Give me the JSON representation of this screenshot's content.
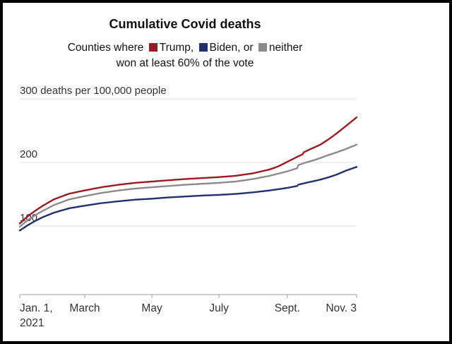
{
  "header": {
    "title": "Cumulative Covid deaths",
    "legend": {
      "prefix": "Counties where",
      "items": [
        {
          "name": "Trump",
          "label": "Trump,",
          "color": "#9e1a22"
        },
        {
          "name": "Biden",
          "label": "Biden,",
          "color": "#20306e"
        },
        {
          "name": "neither",
          "label": "neither",
          "color": "#8b8b8b"
        }
      ],
      "conjunction": "or",
      "line2": "won at least 60% of the vote"
    }
  },
  "chart_data": {
    "type": "line",
    "title": "Cumulative Covid deaths",
    "ylabel": "deaths per 100,000 people",
    "ylim": [
      85,
      310
    ],
    "x_range_days": [
      0,
      306
    ],
    "grid": true,
    "y_gridlines": [
      {
        "value": 300,
        "label": "300 deaths per 100,000 people"
      },
      {
        "value": 200,
        "label": "200"
      },
      {
        "value": 100,
        "label": "100"
      }
    ],
    "x_ticks": [
      {
        "day": 0,
        "label": "Jan. 1,",
        "label2": "2021",
        "align": "start"
      },
      {
        "day": 59,
        "label": "March",
        "align": "middle"
      },
      {
        "day": 120,
        "label": "May",
        "align": "middle"
      },
      {
        "day": 181,
        "label": "July",
        "align": "middle"
      },
      {
        "day": 243,
        "label": "Sept.",
        "align": "middle"
      },
      {
        "day": 306,
        "label": "Nov. 3",
        "align": "end"
      }
    ],
    "draw_order": [
      "Biden",
      "neither",
      "Trump"
    ],
    "series": [
      {
        "name": "Trump",
        "color": "#9e1a22",
        "days": [
          0,
          7,
          14,
          21,
          31,
          45,
          59,
          74,
          90,
          105,
          120,
          135,
          151,
          166,
          181,
          196,
          212,
          227,
          235,
          243,
          251,
          257,
          258,
          264,
          273,
          281,
          288,
          296,
          306
        ],
        "values": [
          104,
          115,
          124,
          132,
          142,
          151,
          156,
          161,
          165,
          168,
          170,
          172,
          174,
          175.5,
          177,
          179,
          183,
          189,
          194,
          201,
          208,
          213,
          216,
          221,
          228,
          237,
          246,
          257,
          271
        ]
      },
      {
        "name": "Biden",
        "color": "#20306e",
        "days": [
          0,
          7,
          14,
          21,
          31,
          45,
          59,
          74,
          90,
          105,
          120,
          135,
          151,
          166,
          181,
          196,
          212,
          227,
          243,
          252,
          253,
          260,
          268,
          273,
          281,
          288,
          296,
          306
        ],
        "values": [
          93,
          101,
          108,
          114,
          121,
          128,
          132,
          136,
          139,
          141.5,
          143,
          145,
          146.5,
          148,
          149,
          150.5,
          153,
          156,
          160,
          163,
          165,
          168,
          171,
          173,
          177,
          181,
          187,
          193
        ]
      },
      {
        "name": "neither",
        "color": "#8b8b8b",
        "days": [
          0,
          7,
          14,
          21,
          31,
          45,
          59,
          74,
          90,
          105,
          120,
          135,
          151,
          166,
          181,
          196,
          212,
          227,
          243,
          252,
          253,
          260,
          268,
          273,
          281,
          288,
          296,
          306
        ],
        "values": [
          99,
          109,
          117,
          124,
          133,
          142,
          147,
          152,
          156,
          159,
          161,
          163,
          165,
          166.5,
          168,
          170,
          174,
          179,
          186,
          191,
          196,
          200,
          204,
          207,
          212,
          216,
          221,
          228
        ]
      }
    ]
  }
}
